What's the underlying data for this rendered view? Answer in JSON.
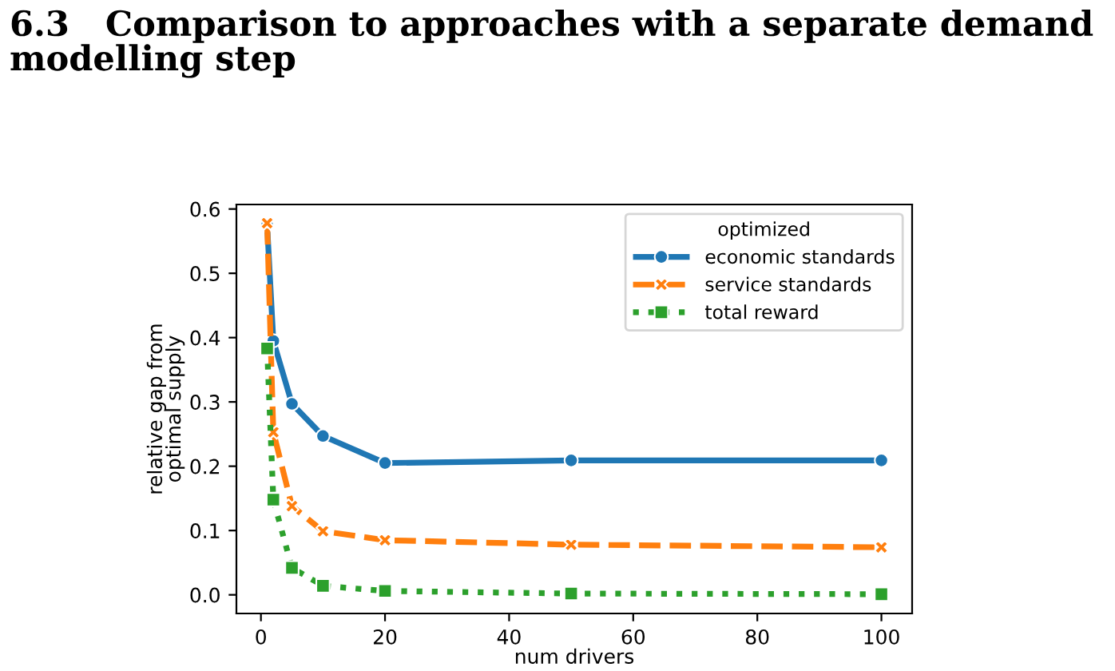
{
  "chart_data": {
    "type": "line",
    "title": "6.3   Comparison to approaches with a separate demand modelling step",
    "xlabel": "num drivers",
    "ylabel": "relative gap from\noptimal supply",
    "legend_title": "optimized",
    "legend": "top right",
    "grid": false,
    "x": [
      1,
      2,
      5,
      10,
      20,
      50,
      100
    ],
    "xlim": [
      -3.95,
      104.95
    ],
    "xticks": [
      0,
      20,
      40,
      60,
      80,
      100
    ],
    "ylim": [
      -0.029,
      0.607
    ],
    "yticks": [
      {
        "value": 0,
        "label": "0.0"
      },
      0.1,
      0.2,
      0.3,
      0.4,
      0.5,
      0.6
    ],
    "series": [
      {
        "name": "economic standards",
        "color": "#1f77b4",
        "marker": "circle",
        "line_style": "solid",
        "values": [
          0.575,
          0.395,
          0.297,
          0.247,
          0.205,
          0.209,
          0.209
        ]
      },
      {
        "name": "service standards",
        "color": "#ff7f0e",
        "marker": "cross",
        "line_style": "dashed",
        "values": [
          0.578,
          0.253,
          0.138,
          0.099,
          0.085,
          0.078,
          0.074
        ]
      },
      {
        "name": "total reward",
        "color": "#2ca02c",
        "marker": "square",
        "line_style": "dotted",
        "values": [
          0.383,
          0.148,
          0.042,
          0.014,
          0.006,
          0.002,
          0.001
        ]
      }
    ]
  }
}
